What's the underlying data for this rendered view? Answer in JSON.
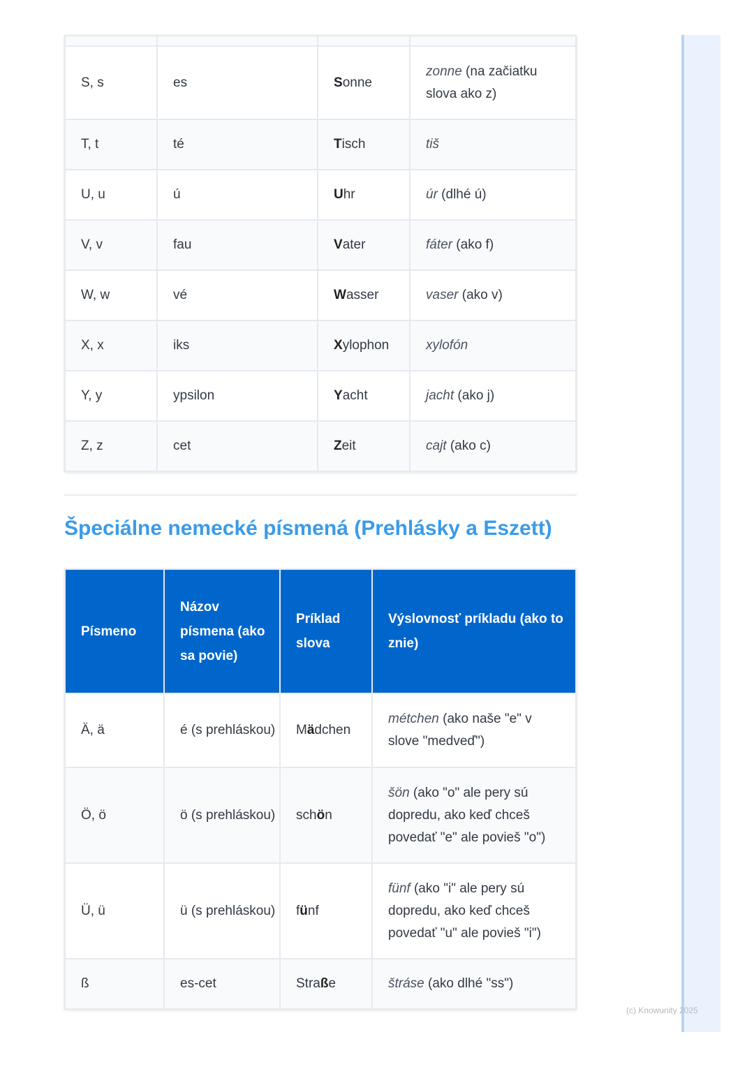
{
  "table1": {
    "rows": [
      {
        "letter": "",
        "name": "",
        "ex_pre": "",
        "ex_bold": "",
        "ex_post": "",
        "pr_italic": "",
        "pr_rest": ""
      },
      {
        "letter": "S, s",
        "name": "es",
        "ex_pre": "",
        "ex_bold": "S",
        "ex_post": "onne",
        "pr_italic": "zonne",
        "pr_rest": " (na začiatku slova ako z)"
      },
      {
        "letter": "T, t",
        "name": "té",
        "ex_pre": "",
        "ex_bold": "T",
        "ex_post": "isch",
        "pr_italic": "tiš",
        "pr_rest": ""
      },
      {
        "letter": "U, u",
        "name": "ú",
        "ex_pre": "",
        "ex_bold": "U",
        "ex_post": "hr",
        "pr_italic": "úr",
        "pr_rest": " (dlhé ú)"
      },
      {
        "letter": "V, v",
        "name": "fau",
        "ex_pre": "",
        "ex_bold": "V",
        "ex_post": "ater",
        "pr_italic": "fáter",
        "pr_rest": " (ako f)"
      },
      {
        "letter": "W, w",
        "name": "vé",
        "ex_pre": "",
        "ex_bold": "W",
        "ex_post": "asser",
        "pr_italic": "vaser",
        "pr_rest": " (ako v)"
      },
      {
        "letter": "X, x",
        "name": "iks",
        "ex_pre": "",
        "ex_bold": "X",
        "ex_post": "ylophon",
        "pr_italic": "xylofón",
        "pr_rest": ""
      },
      {
        "letter": "Y, y",
        "name": "ypsilon",
        "ex_pre": "",
        "ex_bold": "Y",
        "ex_post": "acht",
        "pr_italic": "jacht",
        "pr_rest": " (ako j)"
      },
      {
        "letter": "Z, z",
        "name": "cet",
        "ex_pre": "",
        "ex_bold": "Z",
        "ex_post": "eit",
        "pr_italic": "cajt",
        "pr_rest": " (ako c)"
      }
    ]
  },
  "section_title": "Špeciálne nemecké písmená (Prehlásky a Eszett)",
  "table2": {
    "headers": [
      "Písmeno",
      "Názov písmena (ako sa povie)",
      "Príklad slova",
      "Výslovnosť príkladu (ako to znie)"
    ],
    "rows": [
      {
        "letter": "Ä, ä",
        "name": "é (s prehláskou)",
        "ex_pre": "M",
        "ex_bold": "ä",
        "ex_post": "dchen",
        "pr_italic": "métchen",
        "pr_rest": " (ako naše \"e\" v slove \"medveď\")"
      },
      {
        "letter": "Ö, ö",
        "name": "ö (s prehláskou)",
        "ex_pre": "sch",
        "ex_bold": "ö",
        "ex_post": "n",
        "pr_italic": "šön",
        "pr_rest": " (ako \"o\" ale pery sú dopredu, ako keď chceš povedať \"e\" ale povieš \"o\")"
      },
      {
        "letter": "Ü, ü",
        "name": "ü (s prehláskou)",
        "ex_pre": "f",
        "ex_bold": "ü",
        "ex_post": "nf",
        "pr_italic": "fünf",
        "pr_rest": " (ako \"i\" ale pery sú dopredu, ako keď chceš povedať \"u\" ale povieš \"i\")"
      },
      {
        "letter": "ß",
        "name": "es-cet",
        "ex_pre": "Stra",
        "ex_bold": "ß",
        "ex_post": "e",
        "pr_italic": "štráse",
        "pr_rest": " (ako dlhé \"ss\")"
      }
    ]
  },
  "footer": {
    "copyright": "(c) Knowunity 2025"
  },
  "colors": {
    "header_bg": "#0066cc",
    "title": "#3a9be8",
    "sidebar": "#eaf3fd"
  }
}
